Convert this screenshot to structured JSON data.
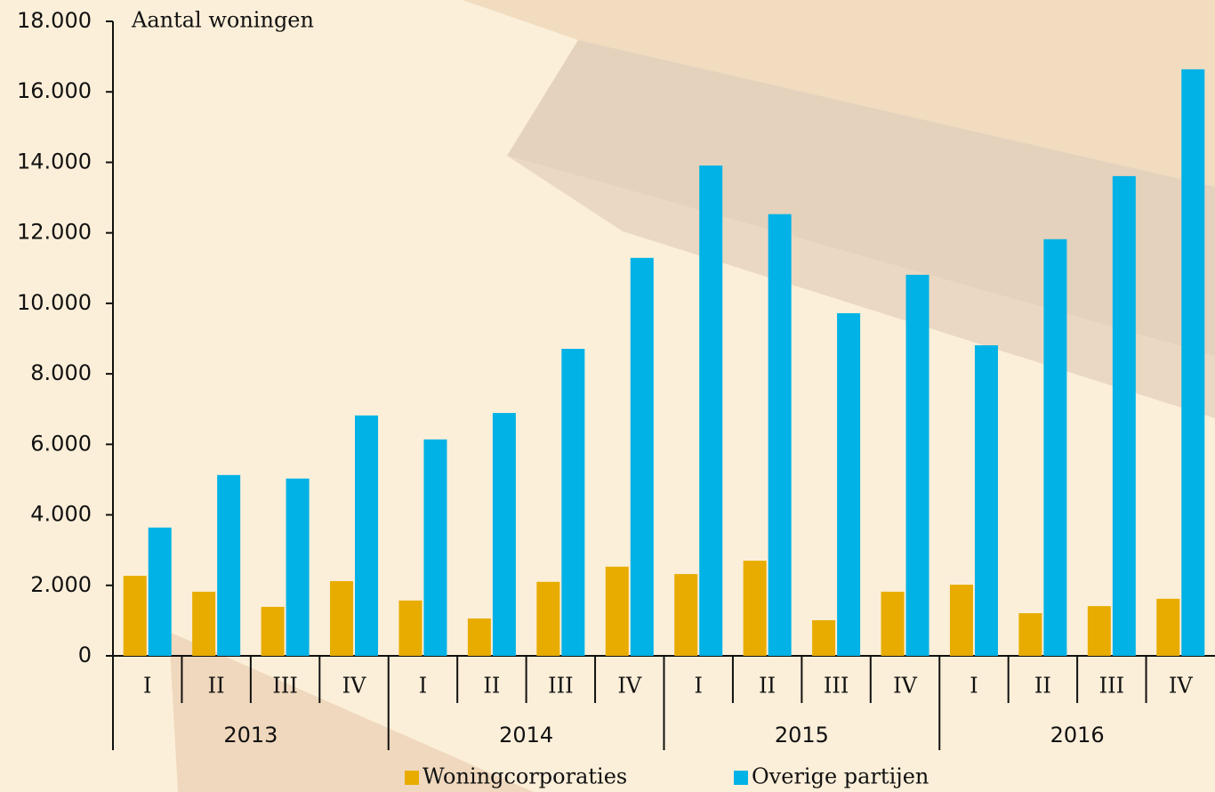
{
  "chart_data": {
    "type": "bar",
    "y_axis_label": "Aantal woningen",
    "categories": [
      "I",
      "II",
      "III",
      "IV",
      "I",
      "II",
      "III",
      "IV",
      "I",
      "II",
      "III",
      "IV",
      "I",
      "II",
      "III",
      "IV"
    ],
    "groups": [
      "2013",
      "2014",
      "2015",
      "2016"
    ],
    "series": [
      {
        "name": "Woningcorporaties",
        "color": "#e8ac00",
        "values": [
          2270,
          1820,
          1390,
          2120,
          1570,
          1060,
          2100,
          2530,
          2320,
          2700,
          1010,
          1820,
          2020,
          1210,
          1410,
          1620
        ]
      },
      {
        "name": "Overige partijen",
        "color": "#00b2e6",
        "values": [
          3640,
          5130,
          5030,
          6820,
          6140,
          6890,
          8710,
          11290,
          13910,
          12530,
          9720,
          10810,
          8810,
          11820,
          13610,
          16640
        ]
      }
    ],
    "ylim": [
      0,
      18000
    ],
    "yticks": [
      0,
      {
        "value": 2000,
        "label": "2.000"
      },
      {
        "value": 4000,
        "label": "4.000"
      },
      {
        "value": 6000,
        "label": "6.000"
      },
      {
        "value": 8000,
        "label": "8.000"
      },
      {
        "value": 10000,
        "label": "10.000"
      },
      {
        "value": 12000,
        "label": "12.000"
      },
      {
        "value": 14000,
        "label": "14.000"
      },
      {
        "value": 16000,
        "label": "16.000"
      },
      {
        "value": 18000,
        "label": "18.000"
      }
    ]
  }
}
